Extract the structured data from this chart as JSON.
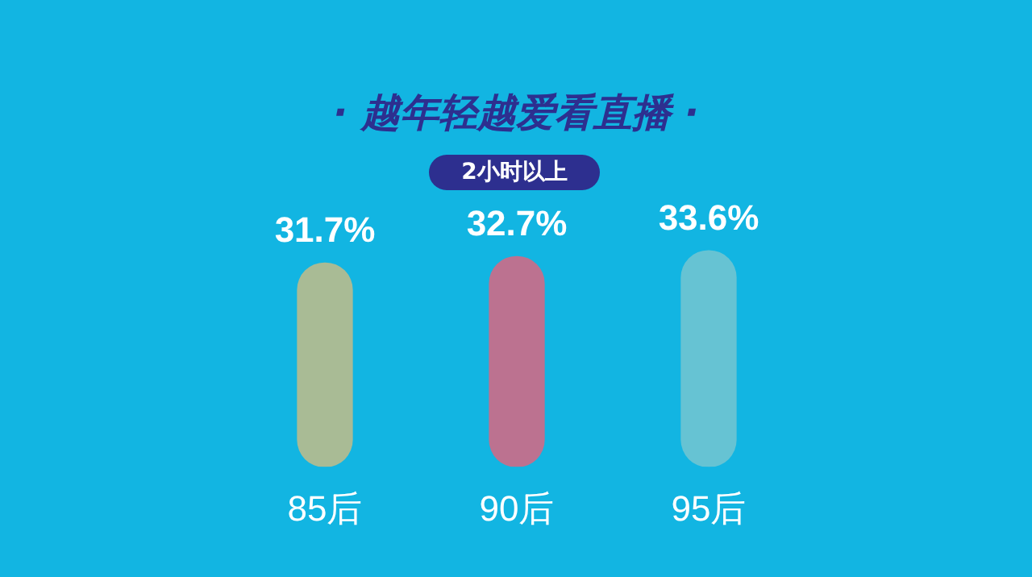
{
  "chart_data": {
    "type": "bar",
    "title": "· 越年轻越爱看直播 ·",
    "subtitle": "2小时以上",
    "categories": [
      "85后",
      "90后",
      "95后"
    ],
    "values": [
      31.7,
      32.7,
      33.6
    ],
    "colors": [
      "#a9bb95",
      "#bc7290",
      "#66c3d3"
    ],
    "value_labels": [
      "31.7%",
      "32.7%",
      "33.6%"
    ],
    "tick_labels": "x",
    "grid": false,
    "legend": false
  }
}
